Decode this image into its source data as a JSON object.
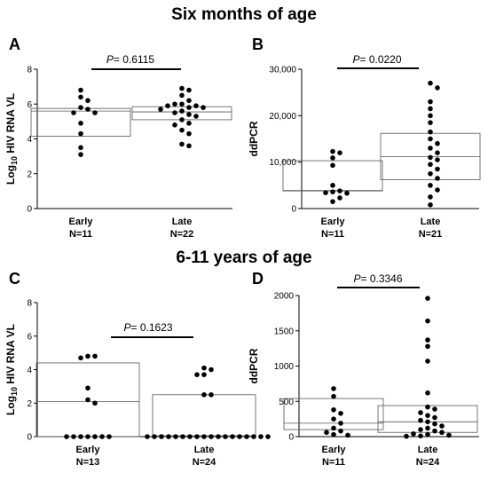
{
  "sections": [
    {
      "title": "Six months of age"
    },
    {
      "title": "6-11 years of age"
    }
  ],
  "chart_data": [
    {
      "panel": "A",
      "type": "scatter",
      "ylabel": "Log10 HIV RNA VL",
      "ylim": [
        0,
        8
      ],
      "yticks": [
        "0",
        "2",
        "4",
        "6",
        "8"
      ],
      "pvalue": {
        "prefix": "P",
        "text": "= 0.6115"
      },
      "groups": [
        {
          "name": "Early",
          "n": "N=11",
          "box": {
            "q1": 4.15,
            "median": 5.6,
            "q3": 5.75
          },
          "points": [
            6.8,
            6.4,
            6.2,
            5.8,
            5.7,
            5.5,
            5.5,
            4.9,
            4.3,
            3.5,
            3.1
          ]
        },
        {
          "name": "Late",
          "n": "N=22",
          "box": {
            "q1": 5.1,
            "median": 5.55,
            "q3": 5.85
          },
          "points": [
            6.9,
            6.8,
            6.5,
            6.2,
            6.0,
            6.0,
            5.9,
            5.9,
            5.8,
            5.8,
            5.7,
            5.6,
            5.5,
            5.4,
            5.3,
            5.1,
            4.9,
            4.8,
            4.5,
            4.3,
            3.7,
            3.6
          ]
        }
      ]
    },
    {
      "panel": "B",
      "type": "scatter",
      "ylabel": "ddPCR",
      "ylim": [
        0,
        30000
      ],
      "yticks": [
        "0",
        "10,000",
        "20,000",
        "30,000"
      ],
      "pvalue": {
        "prefix": "P",
        "text": "= 0.0220"
      },
      "groups": [
        {
          "name": "Early",
          "n": "N=11",
          "box": {
            "q1": 3800,
            "median": 3900,
            "q3": 10300
          },
          "points": [
            12300,
            12000,
            10900,
            9300,
            5000,
            3800,
            3600,
            3400,
            3300,
            2300,
            1500
          ]
        },
        {
          "name": "Late",
          "n": "N=21",
          "box": {
            "q1": 6200,
            "median": 11200,
            "q3": 16200
          },
          "points": [
            27000,
            26000,
            23000,
            21500,
            20000,
            18500,
            16500,
            15000,
            14000,
            13000,
            12000,
            11000,
            10500,
            9500,
            8500,
            7500,
            6500,
            5000,
            4000,
            2500,
            800
          ]
        }
      ]
    },
    {
      "panel": "C",
      "type": "scatter",
      "ylabel": "Log10 HIV RNA VL",
      "ylim": [
        0,
        8
      ],
      "yticks": [
        "0",
        "2",
        "4",
        "6",
        "8"
      ],
      "pvalue": {
        "prefix": "P",
        "text": "= 0.1623"
      },
      "groups": [
        {
          "name": "Early",
          "n": "N=13",
          "box": {
            "q1": 0,
            "median": 2.1,
            "q3": 4.4
          },
          "points": [
            4.8,
            4.8,
            4.7,
            2.9,
            2.2,
            2.0,
            0,
            0,
            0,
            0,
            0,
            0,
            0
          ]
        },
        {
          "name": "Late",
          "n": "N=24",
          "box": {
            "q1": 0,
            "median": 0.05,
            "q3": 2.5
          },
          "points": [
            4.1,
            4.0,
            3.7,
            3.7,
            2.5,
            2.5,
            0,
            0,
            0,
            0,
            0,
            0,
            0,
            0,
            0,
            0,
            0,
            0,
            0,
            0,
            0,
            0,
            0,
            0
          ]
        }
      ]
    },
    {
      "panel": "D",
      "type": "scatter",
      "ylabel": "ddPCR",
      "ylim": [
        0,
        2000
      ],
      "yticks": [
        "0",
        "500",
        "1000",
        "1500",
        "2000"
      ],
      "pvalue": {
        "prefix": "P",
        "text": "= 0.3346"
      },
      "groups": [
        {
          "name": "Early",
          "n": "N=11",
          "box": {
            "q1": 100,
            "median": 190,
            "q3": 540
          },
          "points": [
            680,
            570,
            380,
            330,
            250,
            190,
            120,
            80,
            60,
            30,
            20
          ]
        },
        {
          "name": "Late",
          "n": "N=24",
          "box": {
            "q1": 60,
            "median": 210,
            "q3": 440
          },
          "points": [
            1960,
            1640,
            1370,
            1280,
            1070,
            620,
            420,
            390,
            340,
            300,
            270,
            230,
            210,
            180,
            150,
            120,
            100,
            80,
            60,
            40,
            30,
            20,
            10,
            5
          ]
        }
      ]
    }
  ]
}
